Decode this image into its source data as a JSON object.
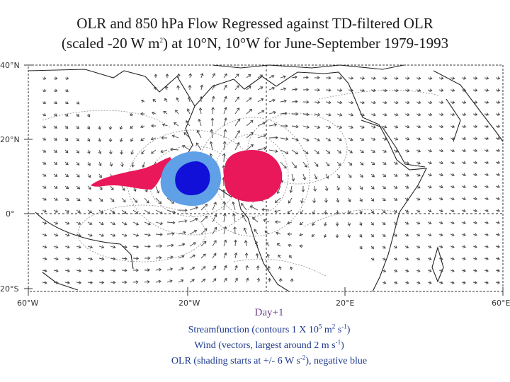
{
  "title": {
    "line1": "OLR and 850 hPa Flow Regressed against TD-filtered OLR",
    "line2_before": "(scaled -20 W m",
    "line2_sup": "2",
    "line2_after": ") at 10°N, 10°W for June-September 1979-1993"
  },
  "map": {
    "lat_labels": [
      "40°N",
      "20°N",
      "0°",
      "20°S"
    ],
    "lon_labels": [
      "60°W",
      "20°W",
      "20°E",
      "60°E"
    ],
    "colors": {
      "positive_olr": "#e8185a",
      "negative_olr_outer": "#5fa0e6",
      "negative_olr_inner": "#1010d8",
      "coast": "#222222",
      "contour": "#8a8a8a",
      "vector": "#444444"
    }
  },
  "caption": {
    "day": "Day+1",
    "streamfunction": {
      "a": "Streamfunction (contours 1 X 10",
      "b": "5",
      "c": " m",
      "d": "2",
      "e": " s",
      "f": "-1",
      "g": ")"
    },
    "wind": {
      "a": "Wind (vectors, largest around 2 m s",
      "b": "-1",
      "c": ")"
    },
    "olr": {
      "a": "OLR (shading starts at +/- 6 W s",
      "b": "-2",
      "c": "), negative blue"
    }
  }
}
